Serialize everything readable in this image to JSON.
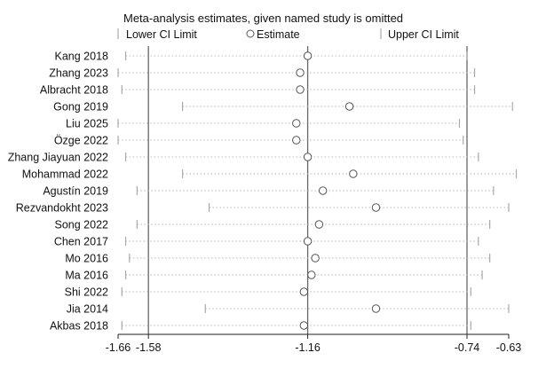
{
  "chart_data": {
    "type": "forest-sensitivity",
    "title": "Meta-analysis estimates, given named study is omitted",
    "legend": {
      "lower": "Lower CI Limit",
      "estimate": "Estimate",
      "upper": "Upper CI Limit",
      "placement": "top"
    },
    "x_ticks": [
      {
        "value": -1.66,
        "label": "-1.66"
      },
      {
        "value": -1.58,
        "label": "-1.58"
      },
      {
        "value": -1.16,
        "label": "-1.16"
      },
      {
        "value": -0.74,
        "label": "-0.74"
      },
      {
        "value": -0.63,
        "label": "-0.63"
      }
    ],
    "xlim": [
      -1.66,
      -0.63
    ],
    "reference_lines": [
      -1.58,
      -1.16,
      -0.74
    ],
    "studies": [
      {
        "label": "Kang 2018",
        "lower": -1.64,
        "estimate": -1.16,
        "upper": -0.74
      },
      {
        "label": "Zhang 2023",
        "lower": -1.66,
        "estimate": -1.18,
        "upper": -0.72
      },
      {
        "label": "Albracht 2018",
        "lower": -1.65,
        "estimate": -1.18,
        "upper": -0.72
      },
      {
        "label": "Gong 2019",
        "lower": -1.49,
        "estimate": -1.05,
        "upper": -0.62
      },
      {
        "label": "Liu 2025",
        "lower": -1.66,
        "estimate": -1.19,
        "upper": -0.76
      },
      {
        "label": "Özge 2022",
        "lower": -1.66,
        "estimate": -1.19,
        "upper": -0.75
      },
      {
        "label": "Zhang Jiayuan 2022",
        "lower": -1.64,
        "estimate": -1.16,
        "upper": -0.71
      },
      {
        "label": "Mohammad 2022",
        "lower": -1.49,
        "estimate": -1.04,
        "upper": -0.61
      },
      {
        "label": "Agustín 2019",
        "lower": -1.61,
        "estimate": -1.12,
        "upper": -0.67
      },
      {
        "label": "Rezvandokht 2023",
        "lower": -1.42,
        "estimate": -0.98,
        "upper": -0.63
      },
      {
        "label": "Song 2022",
        "lower": -1.61,
        "estimate": -1.13,
        "upper": -0.68
      },
      {
        "label": "Chen 2017",
        "lower": -1.64,
        "estimate": -1.16,
        "upper": -0.71
      },
      {
        "label": "Mo 2016",
        "lower": -1.63,
        "estimate": -1.14,
        "upper": -0.68
      },
      {
        "label": "Ma 2016",
        "lower": -1.64,
        "estimate": -1.15,
        "upper": -0.7
      },
      {
        "label": "Shi 2022",
        "lower": -1.65,
        "estimate": -1.17,
        "upper": -0.73
      },
      {
        "label": "Jia 2014",
        "lower": -1.43,
        "estimate": -0.98,
        "upper": -0.63
      },
      {
        "label": "Akbas 2018",
        "lower": -1.65,
        "estimate": -1.17,
        "upper": -0.73
      }
    ],
    "grid": false
  }
}
